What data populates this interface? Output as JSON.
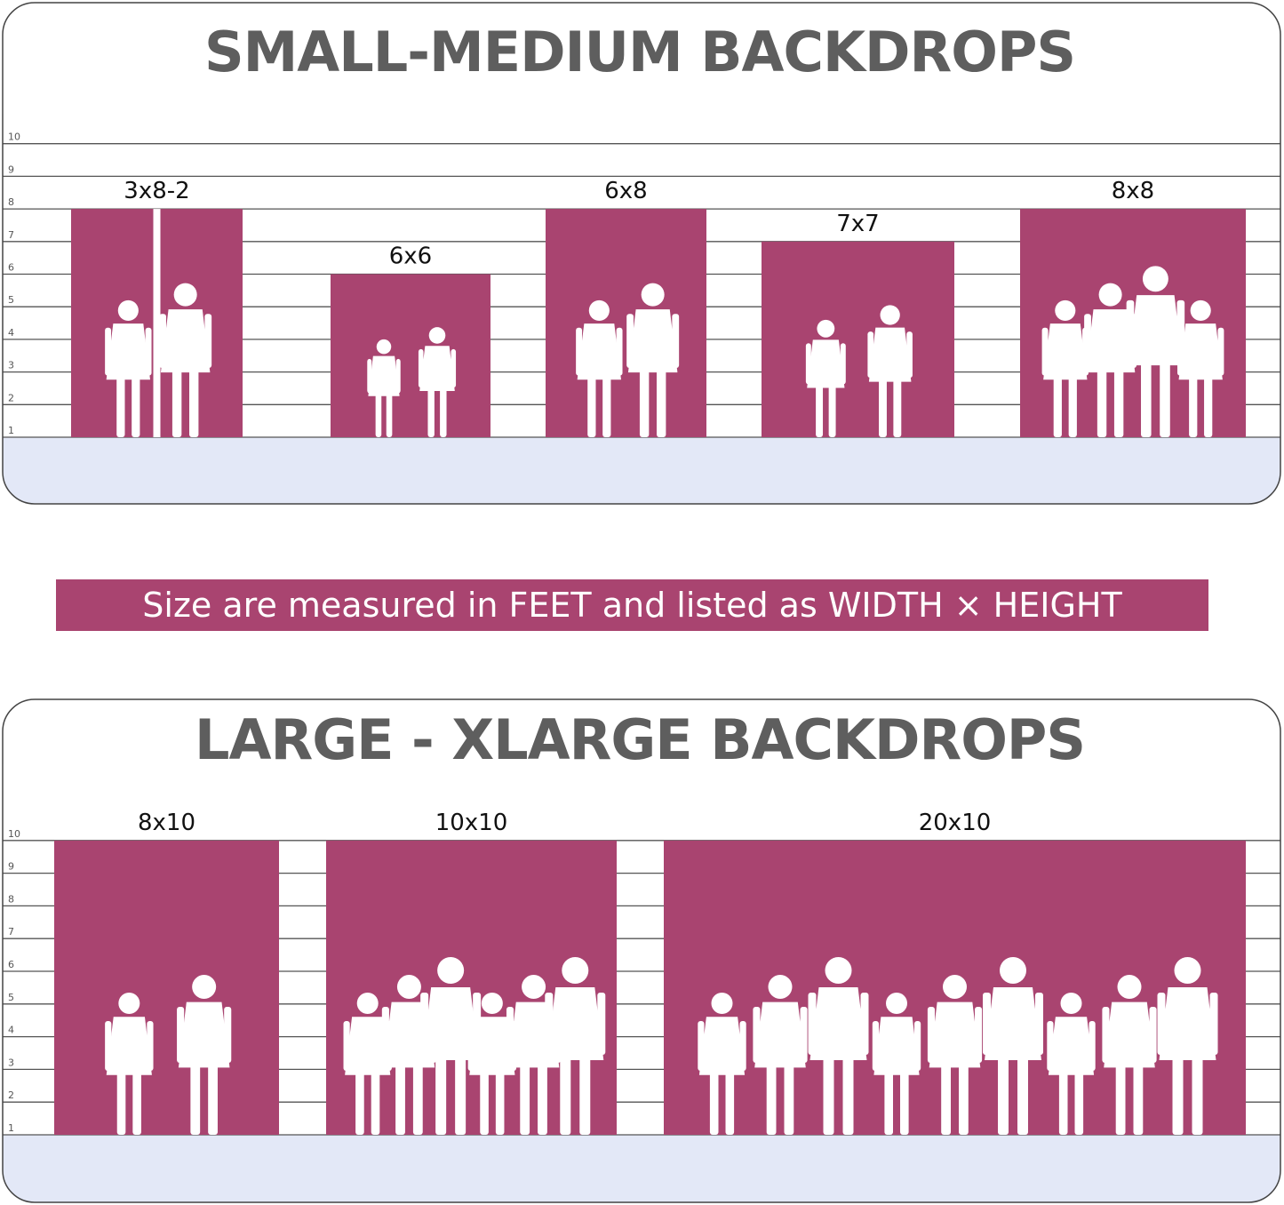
{
  "colors": {
    "backdrop": "#a94470",
    "floor": "#e3e8f7",
    "title": "#5e5e5e",
    "silhouette": "#ffffff"
  },
  "scale_ticks": [
    "1",
    "2",
    "3",
    "4",
    "5",
    "6",
    "7",
    "8",
    "9",
    "10"
  ],
  "panels": [
    {
      "title": "SMALL-MEDIUM BACKDROPS",
      "backdrops": [
        {
          "label": "3x8-2",
          "width_ft": 3,
          "height_ft": 8,
          "panels": 2,
          "people": 2
        },
        {
          "label": "6x6",
          "width_ft": 6,
          "height_ft": 6,
          "panels": 1,
          "people": 2
        },
        {
          "label": "6x8",
          "width_ft": 6,
          "height_ft": 8,
          "panels": 1,
          "people": 2
        },
        {
          "label": "7x7",
          "width_ft": 7,
          "height_ft": 7,
          "panels": 1,
          "people": 2
        },
        {
          "label": "8x8",
          "width_ft": 8,
          "height_ft": 8,
          "panels": 1,
          "people": 4
        }
      ]
    },
    {
      "title": "LARGE - XLARGE BACKDROPS",
      "backdrops": [
        {
          "label": "8x10",
          "width_ft": 8,
          "height_ft": 10,
          "panels": 1,
          "people": 2
        },
        {
          "label": "10x10",
          "width_ft": 10,
          "height_ft": 10,
          "panels": 1,
          "people": 6
        },
        {
          "label": "20x10",
          "width_ft": 20,
          "height_ft": 10,
          "panels": 1,
          "people": 9
        }
      ]
    }
  ],
  "banner": {
    "text": "Size are measured in FEET and listed as WIDTH × HEIGHT"
  }
}
